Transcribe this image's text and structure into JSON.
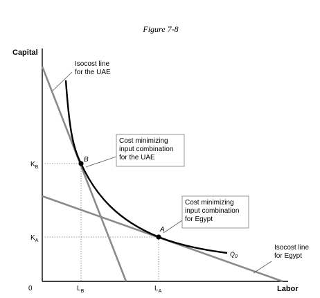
{
  "figure": {
    "title": "Figure 7-8",
    "y_axis_label": "Capital",
    "x_axis_label": "Labor",
    "origin_label": "0",
    "ticks": {
      "k_b": {
        "main": "K",
        "sub": "B"
      },
      "k_a": {
        "main": "K",
        "sub": "A"
      },
      "l_b": {
        "main": "L",
        "sub": "B"
      },
      "l_a": {
        "main": "L",
        "sub": "A"
      }
    },
    "points": {
      "b": {
        "label": "B"
      },
      "a": {
        "label": "A"
      }
    },
    "isoquant": {
      "main": "Q",
      "sub": "0"
    },
    "annotations": {
      "uae_isocost": [
        "Isocost line",
        "for the UAE"
      ],
      "egypt_isocost": [
        "Isocost line",
        "for Egypt"
      ],
      "uae_cost_min": [
        "Cost minimizing",
        "input combination",
        "for the UAE"
      ],
      "egypt_cost_min": [
        "Cost minimizing",
        "input combination",
        "for Egypt"
      ]
    },
    "colors": {
      "isocost_line": "#8a8a8a",
      "isoquant": "#000000",
      "axes": "#000000",
      "dotted_guides": "#777777"
    }
  }
}
